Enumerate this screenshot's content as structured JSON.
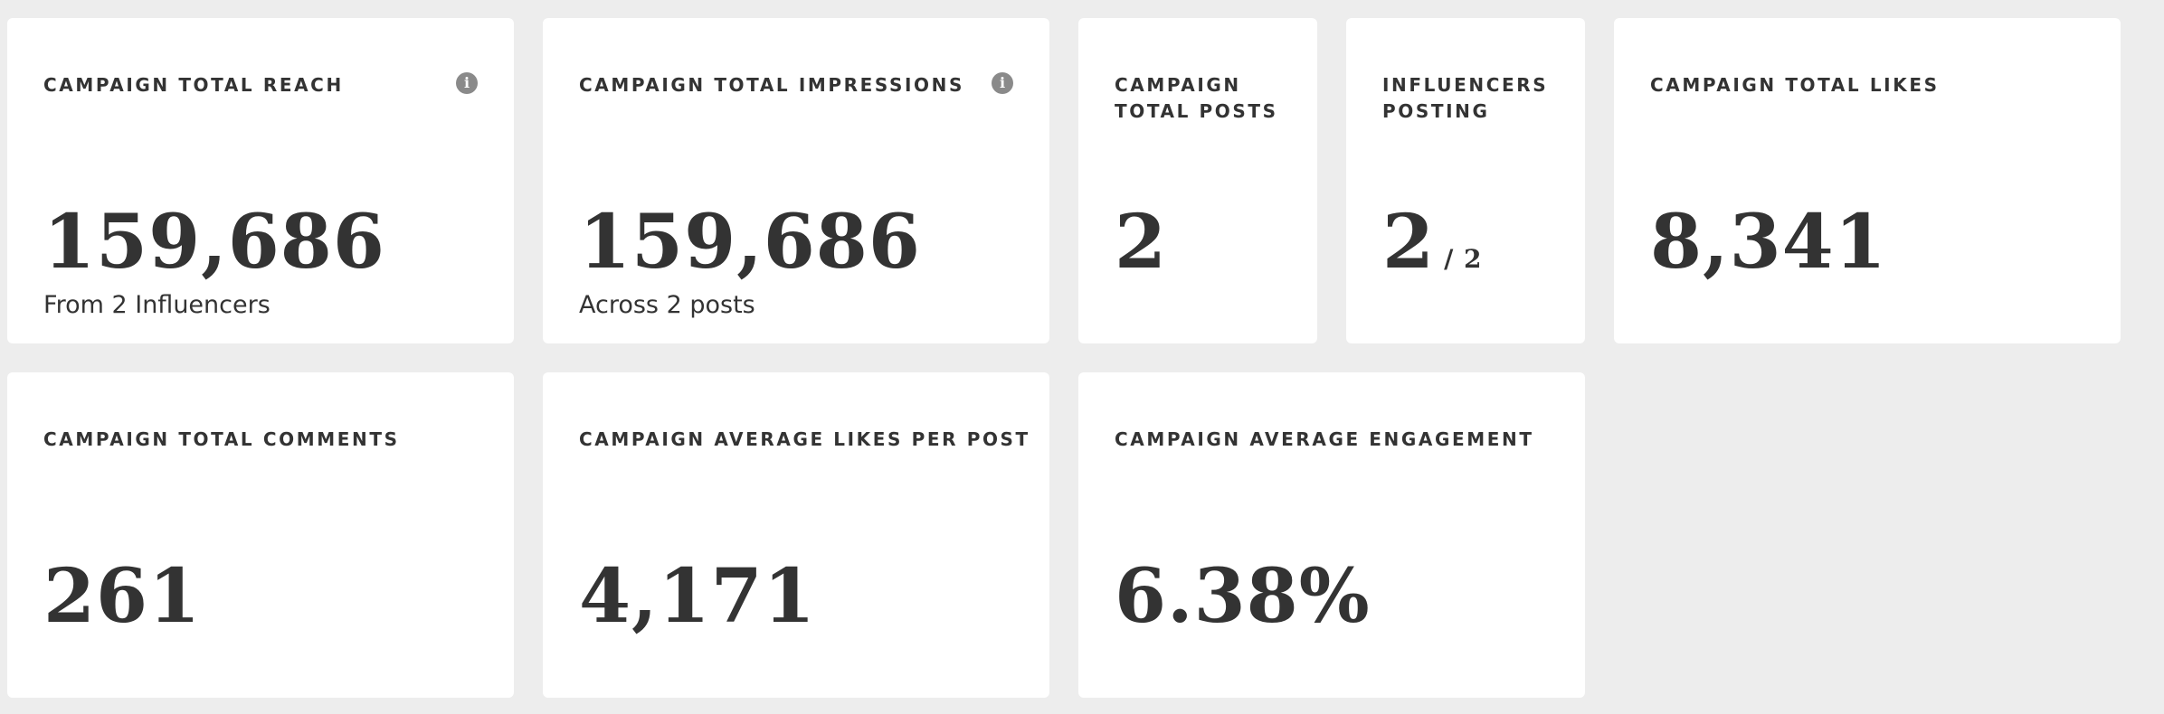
{
  "cards": {
    "reach": {
      "title": "CAMPAIGN TOTAL REACH",
      "value": "159,686",
      "subtitle": "From 2 Influencers",
      "info_icon": "info-icon",
      "icon_glyph": "i"
    },
    "impressions": {
      "title": "CAMPAIGN TOTAL IMPRESSIONS",
      "value": "159,686",
      "subtitle": "Across 2 posts",
      "info_icon": "info-icon",
      "icon_glyph": "i"
    },
    "posts": {
      "title_line1": "CAMPAIGN",
      "title_line2": "TOTAL POSTS",
      "value": "2"
    },
    "influencers": {
      "title_line1": "INFLUENCERS",
      "title_line2": "POSTING",
      "value": "2",
      "of_total": "/ 2"
    },
    "likes": {
      "title": "CAMPAIGN TOTAL LIKES",
      "value": "8,341"
    },
    "comments": {
      "title": "CAMPAIGN TOTAL COMMENTS",
      "value": "261"
    },
    "avg_likes": {
      "title": "CAMPAIGN AVERAGE LIKES PER POST",
      "value": "4,171"
    },
    "avg_engagement": {
      "title": "CAMPAIGN AVERAGE ENGAGEMENT",
      "value": "6.38%"
    }
  },
  "colors": {
    "background": "#ededed",
    "card": "#ffffff",
    "text": "#333333",
    "icon": "#8a8a8a"
  }
}
